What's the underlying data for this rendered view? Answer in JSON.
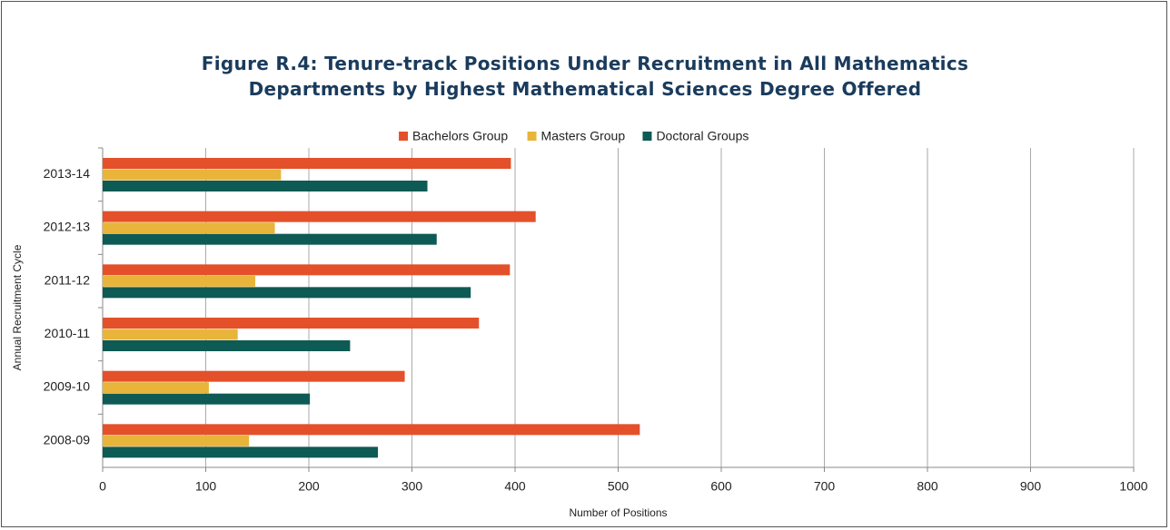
{
  "chart_data": {
    "type": "hbar",
    "title": "Figure R.4: Tenure-track Positions Under Recruitment in All Mathematics Departments by Highest Mathematical Sciences Degree Offered",
    "x_label": "Number of Positions",
    "y_label": "Annual Recruitment Cycle",
    "categories": [
      "2013-14",
      "2012-13",
      "2011-12",
      "2010-11",
      "2009-10",
      "2008-09"
    ],
    "series": [
      {
        "name": "Bachelors Group",
        "color": "#e4502a",
        "values": [
          396,
          420,
          395,
          365,
          293,
          521
        ]
      },
      {
        "name": "Masters Group",
        "color": "#e8b43a",
        "values": [
          173,
          167,
          148,
          131,
          103,
          142
        ]
      },
      {
        "name": "Doctoral Groups",
        "color": "#0e5a54",
        "values": [
          315,
          324,
          357,
          240,
          201,
          267
        ]
      }
    ],
    "xlim": [
      0,
      1000
    ],
    "xticks": [
      0,
      100,
      200,
      300,
      400,
      500,
      600,
      700,
      800,
      900,
      1000
    ],
    "grid": true,
    "legend": "top"
  }
}
